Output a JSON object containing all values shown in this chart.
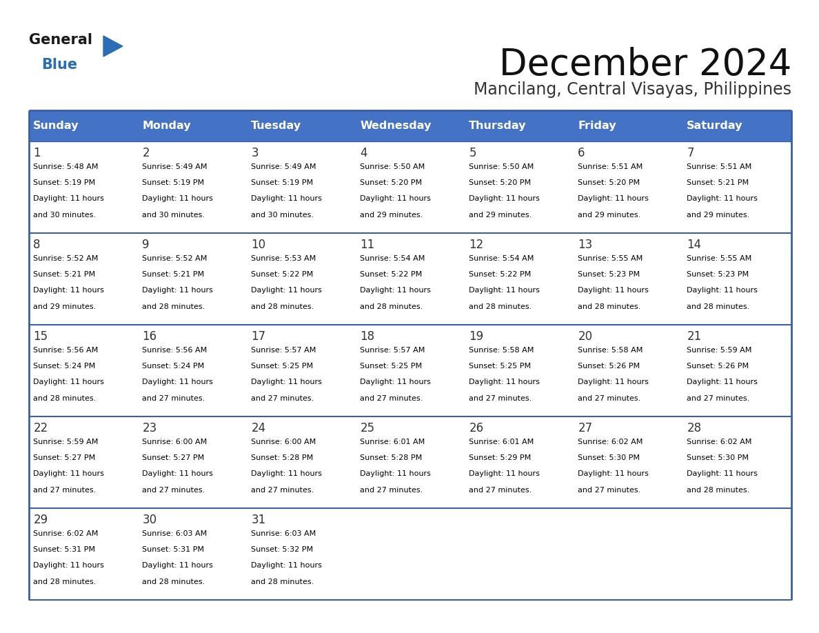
{
  "title": "December 2024",
  "subtitle": "Mancilang, Central Visayas, Philippines",
  "header_color": "#4472C4",
  "header_text_color": "#FFFFFF",
  "days_of_week": [
    "Sunday",
    "Monday",
    "Tuesday",
    "Wednesday",
    "Thursday",
    "Friday",
    "Saturday"
  ],
  "calendar_data": [
    [
      {
        "day": 1,
        "sunrise": "5:48 AM",
        "sunset": "5:19 PM",
        "daylight_hours": 11,
        "daylight_minutes": 30
      },
      {
        "day": 2,
        "sunrise": "5:49 AM",
        "sunset": "5:19 PM",
        "daylight_hours": 11,
        "daylight_minutes": 30
      },
      {
        "day": 3,
        "sunrise": "5:49 AM",
        "sunset": "5:19 PM",
        "daylight_hours": 11,
        "daylight_minutes": 30
      },
      {
        "day": 4,
        "sunrise": "5:50 AM",
        "sunset": "5:20 PM",
        "daylight_hours": 11,
        "daylight_minutes": 29
      },
      {
        "day": 5,
        "sunrise": "5:50 AM",
        "sunset": "5:20 PM",
        "daylight_hours": 11,
        "daylight_minutes": 29
      },
      {
        "day": 6,
        "sunrise": "5:51 AM",
        "sunset": "5:20 PM",
        "daylight_hours": 11,
        "daylight_minutes": 29
      },
      {
        "day": 7,
        "sunrise": "5:51 AM",
        "sunset": "5:21 PM",
        "daylight_hours": 11,
        "daylight_minutes": 29
      }
    ],
    [
      {
        "day": 8,
        "sunrise": "5:52 AM",
        "sunset": "5:21 PM",
        "daylight_hours": 11,
        "daylight_minutes": 29
      },
      {
        "day": 9,
        "sunrise": "5:52 AM",
        "sunset": "5:21 PM",
        "daylight_hours": 11,
        "daylight_minutes": 28
      },
      {
        "day": 10,
        "sunrise": "5:53 AM",
        "sunset": "5:22 PM",
        "daylight_hours": 11,
        "daylight_minutes": 28
      },
      {
        "day": 11,
        "sunrise": "5:54 AM",
        "sunset": "5:22 PM",
        "daylight_hours": 11,
        "daylight_minutes": 28
      },
      {
        "day": 12,
        "sunrise": "5:54 AM",
        "sunset": "5:22 PM",
        "daylight_hours": 11,
        "daylight_minutes": 28
      },
      {
        "day": 13,
        "sunrise": "5:55 AM",
        "sunset": "5:23 PM",
        "daylight_hours": 11,
        "daylight_minutes": 28
      },
      {
        "day": 14,
        "sunrise": "5:55 AM",
        "sunset": "5:23 PM",
        "daylight_hours": 11,
        "daylight_minutes": 28
      }
    ],
    [
      {
        "day": 15,
        "sunrise": "5:56 AM",
        "sunset": "5:24 PM",
        "daylight_hours": 11,
        "daylight_minutes": 28
      },
      {
        "day": 16,
        "sunrise": "5:56 AM",
        "sunset": "5:24 PM",
        "daylight_hours": 11,
        "daylight_minutes": 27
      },
      {
        "day": 17,
        "sunrise": "5:57 AM",
        "sunset": "5:25 PM",
        "daylight_hours": 11,
        "daylight_minutes": 27
      },
      {
        "day": 18,
        "sunrise": "5:57 AM",
        "sunset": "5:25 PM",
        "daylight_hours": 11,
        "daylight_minutes": 27
      },
      {
        "day": 19,
        "sunrise": "5:58 AM",
        "sunset": "5:25 PM",
        "daylight_hours": 11,
        "daylight_minutes": 27
      },
      {
        "day": 20,
        "sunrise": "5:58 AM",
        "sunset": "5:26 PM",
        "daylight_hours": 11,
        "daylight_minutes": 27
      },
      {
        "day": 21,
        "sunrise": "5:59 AM",
        "sunset": "5:26 PM",
        "daylight_hours": 11,
        "daylight_minutes": 27
      }
    ],
    [
      {
        "day": 22,
        "sunrise": "5:59 AM",
        "sunset": "5:27 PM",
        "daylight_hours": 11,
        "daylight_minutes": 27
      },
      {
        "day": 23,
        "sunrise": "6:00 AM",
        "sunset": "5:27 PM",
        "daylight_hours": 11,
        "daylight_minutes": 27
      },
      {
        "day": 24,
        "sunrise": "6:00 AM",
        "sunset": "5:28 PM",
        "daylight_hours": 11,
        "daylight_minutes": 27
      },
      {
        "day": 25,
        "sunrise": "6:01 AM",
        "sunset": "5:28 PM",
        "daylight_hours": 11,
        "daylight_minutes": 27
      },
      {
        "day": 26,
        "sunrise": "6:01 AM",
        "sunset": "5:29 PM",
        "daylight_hours": 11,
        "daylight_minutes": 27
      },
      {
        "day": 27,
        "sunrise": "6:02 AM",
        "sunset": "5:30 PM",
        "daylight_hours": 11,
        "daylight_minutes": 27
      },
      {
        "day": 28,
        "sunrise": "6:02 AM",
        "sunset": "5:30 PM",
        "daylight_hours": 11,
        "daylight_minutes": 28
      }
    ],
    [
      {
        "day": 29,
        "sunrise": "6:02 AM",
        "sunset": "5:31 PM",
        "daylight_hours": 11,
        "daylight_minutes": 28
      },
      {
        "day": 30,
        "sunrise": "6:03 AM",
        "sunset": "5:31 PM",
        "daylight_hours": 11,
        "daylight_minutes": 28
      },
      {
        "day": 31,
        "sunrise": "6:03 AM",
        "sunset": "5:32 PM",
        "daylight_hours": 11,
        "daylight_minutes": 28
      },
      null,
      null,
      null,
      null
    ]
  ],
  "bg_color": "#FFFFFF",
  "cell_bg_color": "#FFFFFF",
  "border_color": "#3A5EA8",
  "text_color": "#000000",
  "logo_black": "#1a1a1a",
  "logo_blue": "#2A6DB5",
  "logo_triangle_color": "#2A6DB5",
  "title_color": "#111111",
  "subtitle_color": "#333333"
}
